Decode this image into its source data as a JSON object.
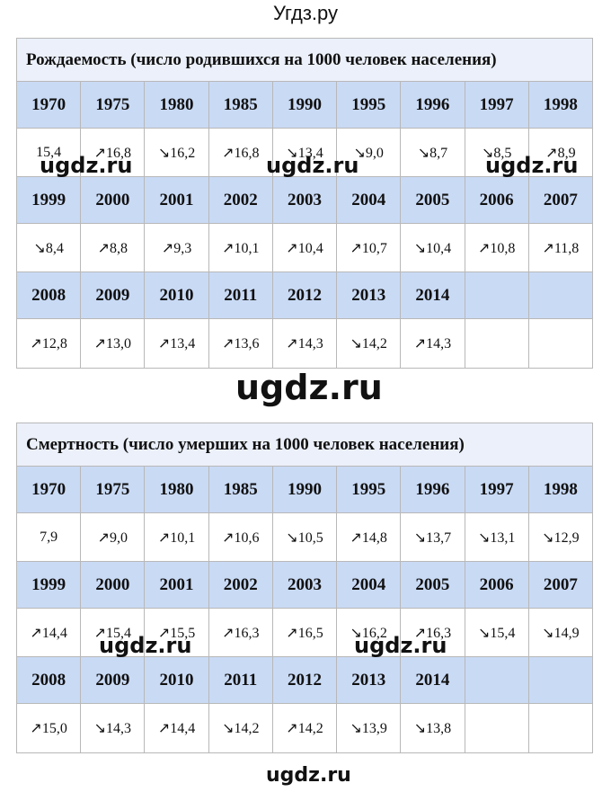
{
  "site_title": "Угдз.ру",
  "watermark": "ugdz.ru",
  "birth": {
    "title": "Рождаемость (число родившихся на 1000 человек населения)",
    "rows": [
      {
        "years": [
          "1970",
          "1975",
          "1980",
          "1985",
          "1990",
          "1995",
          "1996",
          "1997",
          "1998"
        ],
        "values": [
          "15,4",
          "↗16,8",
          "↘16,2",
          "↗16,8",
          "↘13,4",
          "↘9,0",
          "↘8,7",
          "↘8,5",
          "↗8,9"
        ]
      },
      {
        "years": [
          "1999",
          "2000",
          "2001",
          "2002",
          "2003",
          "2004",
          "2005",
          "2006",
          "2007"
        ],
        "values": [
          "↘8,4",
          "↗8,8",
          "↗9,3",
          "↗10,1",
          "↗10,4",
          "↗10,7",
          "↘10,4",
          "↗10,8",
          "↗11,8"
        ]
      },
      {
        "years": [
          "2008",
          "2009",
          "2010",
          "2011",
          "2012",
          "2013",
          "2014",
          "",
          ""
        ],
        "values": [
          "↗12,8",
          "↗13,0",
          "↗13,4",
          "↗13,6",
          "↗14,3",
          "↘14,2",
          "↗14,3",
          "",
          ""
        ]
      }
    ]
  },
  "death": {
    "title": "Смертность (число умерших на 1000 человек населения)",
    "rows": [
      {
        "years": [
          "1970",
          "1975",
          "1980",
          "1985",
          "1990",
          "1995",
          "1996",
          "1997",
          "1998"
        ],
        "values": [
          "7,9",
          "↗9,0",
          "↗10,1",
          "↗10,6",
          "↘10,5",
          "↗14,8",
          "↘13,7",
          "↘13,1",
          "↘12,9"
        ]
      },
      {
        "years": [
          "1999",
          "2000",
          "2001",
          "2002",
          "2003",
          "2004",
          "2005",
          "2006",
          "2007"
        ],
        "values": [
          "↗14,4",
          "↗15,4",
          "↗15,5",
          "↗16,3",
          "↗16,5",
          "↘16,2",
          "↗16,3",
          "↘15,4",
          "↘14,9"
        ]
      },
      {
        "years": [
          "2008",
          "2009",
          "2010",
          "2011",
          "2012",
          "2013",
          "2014",
          "",
          ""
        ],
        "values": [
          "↗15,0",
          "↘14,3",
          "↗14,4",
          "↘14,2",
          "↗14,2",
          "↘13,9",
          "↘13,8",
          "",
          ""
        ]
      }
    ]
  }
}
